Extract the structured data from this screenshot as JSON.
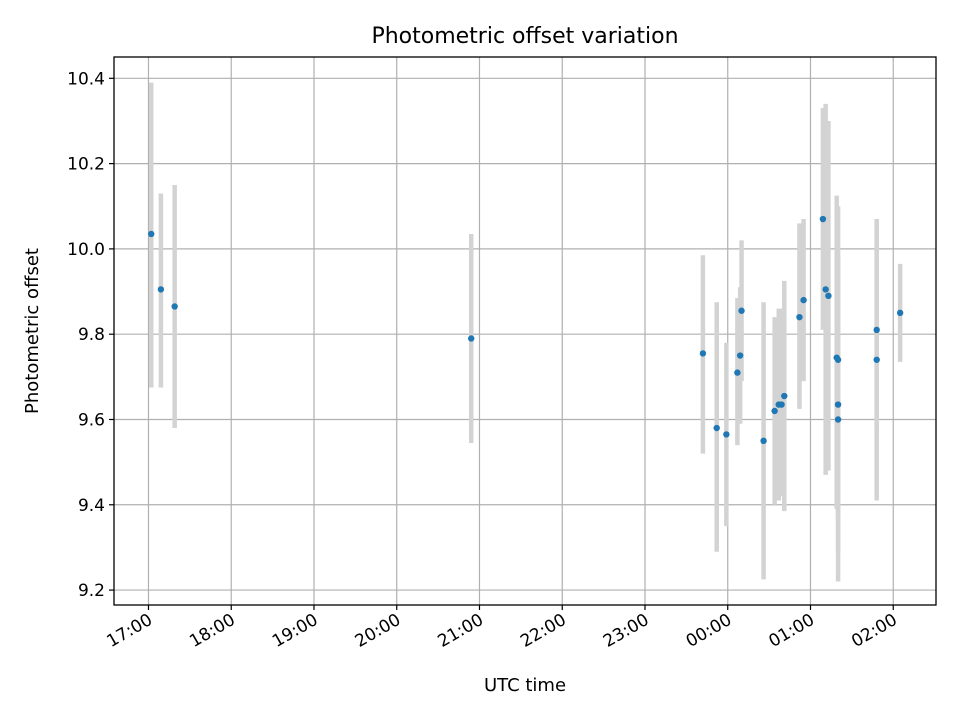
{
  "chart_data": {
    "type": "scatter",
    "title": "Photometric offset variation",
    "xlabel": "UTC time",
    "ylabel": "Photometric offset",
    "x_axis_type": "time",
    "x_ticks": [
      "17:00",
      "18:00",
      "19:00",
      "20:00",
      "21:00",
      "22:00",
      "23:00",
      "00:00",
      "01:00",
      "02:00"
    ],
    "xlim": [
      "16:35",
      "02:31"
    ],
    "y_ticks": [
      "9.2",
      "9.4",
      "9.6",
      "9.8",
      "10.0",
      "10.2",
      "10.4"
    ],
    "ylim": [
      9.165,
      10.45
    ],
    "grid": true,
    "colors": {
      "points": "#1f77b4",
      "error_bars": "#d3d3d3"
    },
    "points": [
      {
        "x": "17:02",
        "y": 10.035,
        "low": 9.675,
        "high": 10.39
      },
      {
        "x": "17:09",
        "y": 9.905,
        "low": 9.675,
        "high": 10.13
      },
      {
        "x": "17:19",
        "y": 9.865,
        "low": 9.58,
        "high": 10.15
      },
      {
        "x": "20:54",
        "y": 9.79,
        "low": 9.545,
        "high": 10.035
      },
      {
        "x": "23:42",
        "y": 9.755,
        "low": 9.52,
        "high": 9.985
      },
      {
        "x": "23:52",
        "y": 9.58,
        "low": 9.29,
        "high": 9.875
      },
      {
        "x": "23:59",
        "y": 9.565,
        "low": 9.35,
        "high": 9.78
      },
      {
        "x": "00:07",
        "y": 9.71,
        "low": 9.54,
        "high": 9.885
      },
      {
        "x": "00:09",
        "y": 9.75,
        "low": 9.59,
        "high": 9.91
      },
      {
        "x": "00:10",
        "y": 9.855,
        "low": 9.69,
        "high": 10.02
      },
      {
        "x": "00:26",
        "y": 9.55,
        "low": 9.225,
        "high": 9.875
      },
      {
        "x": "00:34",
        "y": 9.62,
        "low": 9.4,
        "high": 9.84
      },
      {
        "x": "00:37",
        "y": 9.635,
        "low": 9.41,
        "high": 9.86
      },
      {
        "x": "00:39",
        "y": 9.635,
        "low": 9.42,
        "high": 9.86
      },
      {
        "x": "00:41",
        "y": 9.655,
        "low": 9.385,
        "high": 9.925
      },
      {
        "x": "00:52",
        "y": 9.84,
        "low": 9.625,
        "high": 10.06
      },
      {
        "x": "00:55",
        "y": 9.88,
        "low": 9.69,
        "high": 10.07
      },
      {
        "x": "01:09",
        "y": 10.07,
        "low": 9.81,
        "high": 10.33
      },
      {
        "x": "01:11",
        "y": 9.905,
        "low": 9.47,
        "high": 10.34
      },
      {
        "x": "01:13",
        "y": 9.89,
        "low": 9.48,
        "high": 10.3
      },
      {
        "x": "01:19",
        "y": 9.745,
        "low": 9.39,
        "high": 10.125
      },
      {
        "x": "01:20",
        "y": 9.74,
        "low": 9.37,
        "high": 10.1
      },
      {
        "x": "01:20",
        "y": 9.635,
        "low": 9.29,
        "high": 9.98
      },
      {
        "x": "01:20",
        "y": 9.6,
        "low": 9.22,
        "high": 9.98
      },
      {
        "x": "01:48",
        "y": 9.81,
        "low": 9.58,
        "high": 10.07
      },
      {
        "x": "01:48",
        "y": 9.74,
        "low": 9.41,
        "high": 10.07
      },
      {
        "x": "02:05",
        "y": 9.85,
        "low": 9.735,
        "high": 9.965
      }
    ]
  }
}
